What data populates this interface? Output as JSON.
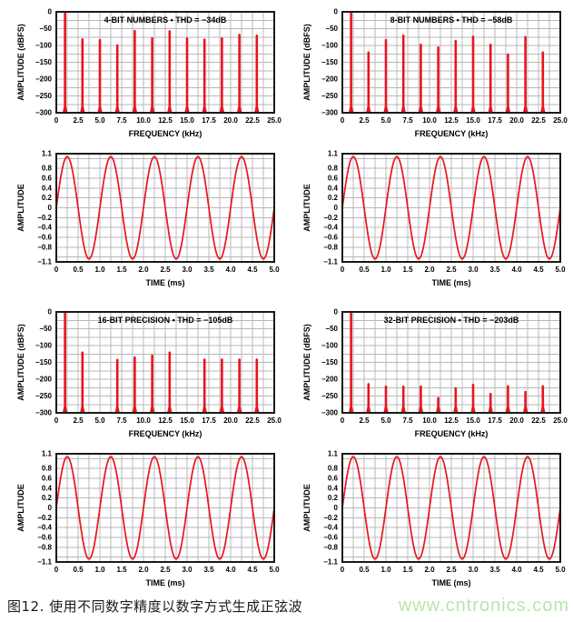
{
  "caption": {
    "text": "图12. 使用不同数字精度以数字方式生成正弦波"
  },
  "watermark": {
    "text": "www.cntronics.com"
  },
  "colors": {
    "series_red": "#e8141e",
    "grid": "#b8b8b8",
    "border": "#1a1a1a",
    "text": "#000000",
    "watermark_green": "#b9e5ad"
  },
  "chart_data": [
    {
      "id": "spectrum-4bit",
      "type": "bar",
      "title": "4-BIT NUMBERS • THD = −34dB",
      "xlabel": "FREQUENCY (kHz)",
      "ylabel": "AMPLITUDE (dBFS)",
      "xlim": [
        0,
        25
      ],
      "ylim": [
        -300,
        0
      ],
      "x_minor": 1.25,
      "y_minor": 25,
      "grid": true,
      "xticks": {
        "values": [
          0,
          2.5,
          5,
          7.5,
          10,
          12.5,
          15,
          17.5,
          20,
          22.5,
          25
        ],
        "labels": [
          "0",
          "2.5",
          "5.0",
          "7.5",
          "10.0",
          "12.5",
          "15.0",
          "17.5",
          "20.0",
          "22.5",
          "25.0"
        ]
      },
      "yticks": {
        "values": [
          0,
          -50,
          -100,
          -150,
          -200,
          -250,
          -300
        ],
        "labels": [
          "0",
          "−50",
          "−100",
          "−150",
          "−200",
          "−250",
          "−300"
        ]
      },
      "spikes": {
        "x": [
          1,
          3,
          5,
          7,
          9,
          11,
          13,
          15,
          17,
          19,
          21,
          23
        ],
        "y": [
          0,
          -77,
          -79,
          -95,
          -52,
          -74,
          -53,
          -74,
          -78,
          -74,
          -64,
          -66
        ]
      }
    },
    {
      "id": "spectrum-8bit",
      "type": "bar",
      "title": "8-BIT NUMBERS • THD = −58dB",
      "xlabel": "FREQUENCY (kHz)",
      "ylabel": "AMPLITUDE (dBFS)",
      "xlim": [
        0,
        25
      ],
      "ylim": [
        -300,
        0
      ],
      "x_minor": 1.25,
      "y_minor": 25,
      "grid": true,
      "xticks": {
        "values": [
          0,
          2.5,
          5,
          7.5,
          10,
          12.5,
          15,
          17.5,
          20,
          22.5,
          25
        ],
        "labels": [
          "0",
          "2.5",
          "5.0",
          "7.5",
          "10.0",
          "12.5",
          "15.0",
          "17.5",
          "20.0",
          "22.5",
          "25.0"
        ]
      },
      "yticks": {
        "values": [
          0,
          -50,
          -100,
          -150,
          -200,
          -250,
          -300
        ],
        "labels": [
          "0",
          "−50",
          "−100",
          "−150",
          "−200",
          "−250",
          "−300"
        ]
      },
      "spikes": {
        "x": [
          1,
          3,
          5,
          7,
          9,
          11,
          13,
          15,
          17,
          19,
          21,
          23
        ],
        "y": [
          0,
          -116,
          -79,
          -66,
          -93,
          -101,
          -82,
          -69,
          -93,
          -122,
          -70,
          -116
        ]
      }
    },
    {
      "id": "waveform-4bit",
      "type": "line",
      "title": "",
      "xlabel": "TIME (ms)",
      "ylabel": "AMPLITUDE",
      "xlim": [
        0,
        5
      ],
      "ylim": [
        -1.1,
        1.1
      ],
      "x_minor": 0.25,
      "y_minor": 0.2,
      "grid": true,
      "xticks": {
        "values": [
          0,
          0.5,
          1,
          1.5,
          2,
          2.5,
          3,
          3.5,
          4,
          4.5,
          5
        ],
        "labels": [
          "0",
          "0.5",
          "1.0",
          "1.5",
          "2.0",
          "2.5",
          "3.0",
          "3.5",
          "4.0",
          "4.5",
          "5.0"
        ]
      },
      "yticks": {
        "values": [
          1.1,
          0.8,
          0.6,
          0.4,
          0.2,
          0,
          -0.2,
          -0.4,
          -0.6,
          -0.8,
          -1.1
        ],
        "labels": [
          "1.1",
          "0.8",
          "0.6",
          "0.4",
          "0.2",
          "0",
          "−0.2",
          "−0.4",
          "−0.6",
          "−0.8",
          "−1.1"
        ]
      },
      "wave": {
        "amplitude": 1.04,
        "frequency_khz": 1,
        "phase_deg": 0,
        "duration_ms": 5
      }
    },
    {
      "id": "waveform-8bit",
      "type": "line",
      "title": "",
      "xlabel": "TIME (ms)",
      "ylabel": "AMPLITUDE",
      "xlim": [
        0,
        5
      ],
      "ylim": [
        -1.1,
        1.1
      ],
      "x_minor": 0.25,
      "y_minor": 0.2,
      "grid": true,
      "xticks": {
        "values": [
          0,
          0.5,
          1,
          1.5,
          2,
          2.5,
          3,
          3.5,
          4,
          4.5,
          5
        ],
        "labels": [
          "0",
          "0.5",
          "1.0",
          "1.5",
          "2.0",
          "2.5",
          "3.0",
          "3.5",
          "4.0",
          "4.5",
          "5.0"
        ]
      },
      "yticks": {
        "values": [
          1.1,
          0.8,
          0.6,
          0.4,
          0.2,
          0,
          -0.2,
          -0.4,
          -0.6,
          -0.8,
          -1.1
        ],
        "labels": [
          "1.1",
          "0.8",
          "0.6",
          "0.4",
          "0.2",
          "0",
          "−0.2",
          "−0.4",
          "−0.6",
          "−0.8",
          "−1.1"
        ]
      },
      "wave": {
        "amplitude": 1.04,
        "frequency_khz": 1,
        "phase_deg": 0,
        "duration_ms": 5
      }
    },
    {
      "id": "spectrum-16bit",
      "type": "bar",
      "title": "16-BIT PRECISION • THD = −105dB",
      "xlabel": "FREQUENCY (kHz)",
      "ylabel": "AMPLITUDE (dBFS)",
      "xlim": [
        0,
        25
      ],
      "ylim": [
        -300,
        0
      ],
      "x_minor": 1.25,
      "y_minor": 25,
      "grid": true,
      "xticks": {
        "values": [
          0,
          2.5,
          5,
          7.5,
          10,
          12.5,
          15,
          17.5,
          20,
          22.5,
          25
        ],
        "labels": [
          "0",
          "2.5",
          "5.0",
          "7.5",
          "10.0",
          "12.5",
          "15.0",
          "17.5",
          "20.0",
          "22.5",
          "25.0"
        ]
      },
      "yticks": {
        "values": [
          0,
          -50,
          -100,
          -150,
          -200,
          -250,
          -300
        ],
        "labels": [
          "0",
          "−50",
          "−100",
          "−150",
          "−200",
          "−250",
          "−300"
        ]
      },
      "spikes": {
        "x": [
          1,
          3,
          7,
          9,
          11,
          13,
          17,
          19,
          21,
          23
        ],
        "y": [
          0,
          -116,
          -138,
          -131,
          -125,
          -116,
          -137,
          -137,
          -137,
          -137
        ]
      }
    },
    {
      "id": "spectrum-32bit",
      "type": "bar",
      "title": "32-BIT PRECISION • THD = −203dB",
      "xlabel": "FREQUENCY (kHz)",
      "ylabel": "AMPLITUDE (dBFS)",
      "xlim": [
        0,
        25
      ],
      "ylim": [
        -300,
        0
      ],
      "x_minor": 1.25,
      "y_minor": 25,
      "grid": true,
      "xticks": {
        "values": [
          0,
          2.5,
          5,
          7.5,
          10,
          12.5,
          15,
          17.5,
          20,
          22.5,
          25
        ],
        "labels": [
          "0",
          "2.5",
          "5.0",
          "7.5",
          "10.0",
          "12.5",
          "15.0",
          "17.5",
          "20.0",
          "22.5",
          "25.0"
        ]
      },
      "yticks": {
        "values": [
          0,
          -50,
          -100,
          -150,
          -200,
          -250,
          -300
        ],
        "labels": [
          "0",
          "−50",
          "−100",
          "−150",
          "−200",
          "−250",
          "−300"
        ]
      },
      "spikes": {
        "x": [
          1,
          3,
          5,
          7,
          9,
          11,
          13,
          15,
          17,
          19,
          21,
          23
        ],
        "y": [
          0,
          -210,
          -217,
          -217,
          -217,
          -251,
          -222,
          -212,
          -239,
          -216,
          -233,
          -216
        ]
      }
    },
    {
      "id": "waveform-16bit",
      "type": "line",
      "title": "",
      "xlabel": "TIME (ms)",
      "ylabel": "AMPLITUDE",
      "xlim": [
        0,
        5
      ],
      "ylim": [
        -1.1,
        1.1
      ],
      "x_minor": 0.25,
      "y_minor": 0.2,
      "grid": true,
      "xticks": {
        "values": [
          0,
          0.5,
          1,
          1.5,
          2,
          2.5,
          3,
          3.5,
          4,
          4.5,
          5
        ],
        "labels": [
          "0",
          "0.5",
          "1.0",
          "1.5",
          "2.0",
          "2.5",
          "3.0",
          "3.5",
          "4.0",
          "4.5",
          "5.0"
        ]
      },
      "yticks": {
        "values": [
          1.1,
          0.8,
          0.6,
          0.4,
          0.2,
          0,
          -0.2,
          -0.4,
          -0.6,
          -0.8,
          -1.1
        ],
        "labels": [
          "1.1",
          "0.8",
          "0.6",
          "0.4",
          "0.2",
          "0",
          "−0.2",
          "−0.4",
          "−0.6",
          "−0.8",
          "−1.1"
        ]
      },
      "wave": {
        "amplitude": 1.04,
        "frequency_khz": 1,
        "phase_deg": 0,
        "duration_ms": 5
      }
    },
    {
      "id": "waveform-32bit",
      "type": "line",
      "title": "",
      "xlabel": "TIME (ms)",
      "ylabel": "AMPLITUDE",
      "xlim": [
        0,
        5
      ],
      "ylim": [
        -1.1,
        1.1
      ],
      "x_minor": 0.25,
      "y_minor": 0.2,
      "grid": true,
      "xticks": {
        "values": [
          0,
          0.5,
          1,
          1.5,
          2,
          2.5,
          3,
          3.5,
          4,
          4.5,
          5
        ],
        "labels": [
          "0",
          "0.5",
          "1.0",
          "1.5",
          "2.0",
          "2.5",
          "3.0",
          "3.5",
          "4.0",
          "4.5",
          "5.0"
        ]
      },
      "yticks": {
        "values": [
          1.1,
          0.8,
          0.6,
          0.4,
          0.2,
          0,
          -0.2,
          -0.4,
          -0.6,
          -0.8,
          -1.1
        ],
        "labels": [
          "1.1",
          "0.8",
          "0.6",
          "0.4",
          "0.2",
          "0",
          "−0.2",
          "−0.4",
          "−0.6",
          "−0.8",
          "−1.1"
        ]
      },
      "wave": {
        "amplitude": 1.04,
        "frequency_khz": 1,
        "phase_deg": 0,
        "duration_ms": 5
      }
    }
  ]
}
